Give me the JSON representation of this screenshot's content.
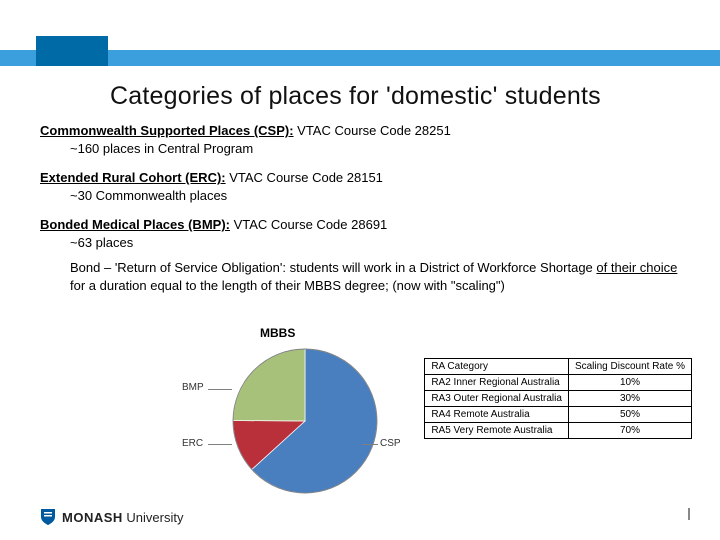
{
  "header": {
    "bar_color": "#3a9fdc",
    "tab_color": "#006aa7",
    "title": "Categories of places for 'domestic' students"
  },
  "csp": {
    "label_bold": "Commonwealth Supported Places (CSP):",
    "label_rest": " VTAC Course Code 28251",
    "sub": "~160 places in Central Program"
  },
  "erc": {
    "label_bold": "Extended Rural Cohort (ERC):",
    "label_rest": " VTAC Course Code 28151",
    "sub": "~30 Commonwealth places"
  },
  "bmp": {
    "label_bold": "Bonded Medical Places (BMP):",
    "label_rest": " VTAC Course Code 28691",
    "sub": "~63 places",
    "bond_prefix": "Bond – 'Return of Service Obligation': students will work in a District of Workforce Shortage ",
    "bond_underline": "of their choice",
    "bond_suffix": " for a duration equal to the length of their MBBS degree; (now with \"scaling\")"
  },
  "pie": {
    "title": "MBBS",
    "labels": {
      "bmp": "BMP",
      "erc": "ERC",
      "csp": "CSP"
    },
    "slices": {
      "csp_value": 160,
      "csp_color": "#4a7fbf",
      "erc_value": 30,
      "erc_color": "#b92f3a",
      "bmp_value": 63,
      "bmp_color": "#a7c07a"
    },
    "background_color": "#ffffff"
  },
  "table": {
    "headers": [
      "RA Category",
      "Scaling Discount Rate %"
    ],
    "rows": [
      [
        "RA2 Inner Regional Australia",
        "10%"
      ],
      [
        "RA3 Outer Regional Australia",
        "30%"
      ],
      [
        "RA4 Remote Australia",
        "50%"
      ],
      [
        "RA5 Very Remote Australia",
        "70%"
      ]
    ]
  },
  "logo": {
    "name": "MONASH",
    "suffix": "University"
  }
}
